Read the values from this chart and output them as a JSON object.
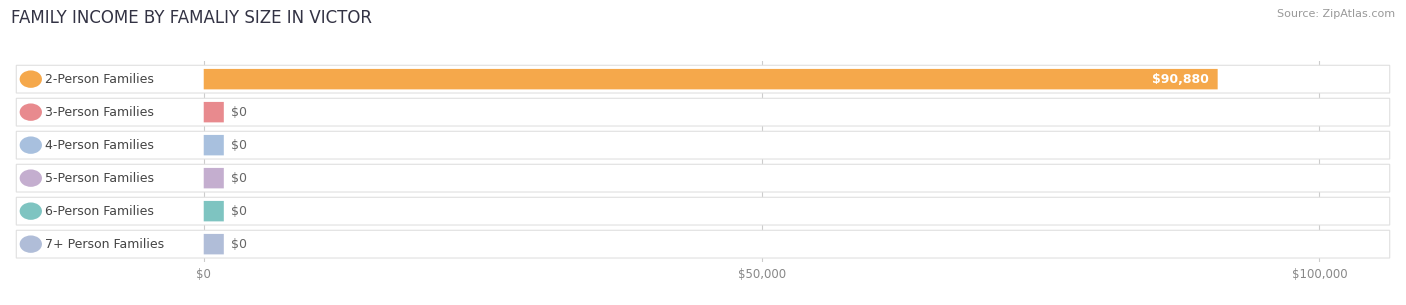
{
  "title": "FAMILY INCOME BY FAMALIY SIZE IN VICTOR",
  "source": "Source: ZipAtlas.com",
  "categories": [
    "2-Person Families",
    "3-Person Families",
    "4-Person Families",
    "5-Person Families",
    "6-Person Families",
    "7+ Person Families"
  ],
  "values": [
    90880,
    0,
    0,
    0,
    0,
    0
  ],
  "bar_colors": [
    "#F5A84B",
    "#E88A8E",
    "#A8C0DE",
    "#C4AECF",
    "#7EC4C1",
    "#B0BDD8"
  ],
  "value_labels": [
    "$90,880",
    "$0",
    "$0",
    "$0",
    "$0",
    "$0"
  ],
  "xlim": [
    0,
    100000
  ],
  "xticks": [
    0,
    50000,
    100000
  ],
  "xtick_labels": [
    "$0",
    "$50,000",
    "$100,000"
  ],
  "bar_height": 0.62,
  "title_fontsize": 12,
  "label_fontsize": 9,
  "value_fontsize": 9
}
